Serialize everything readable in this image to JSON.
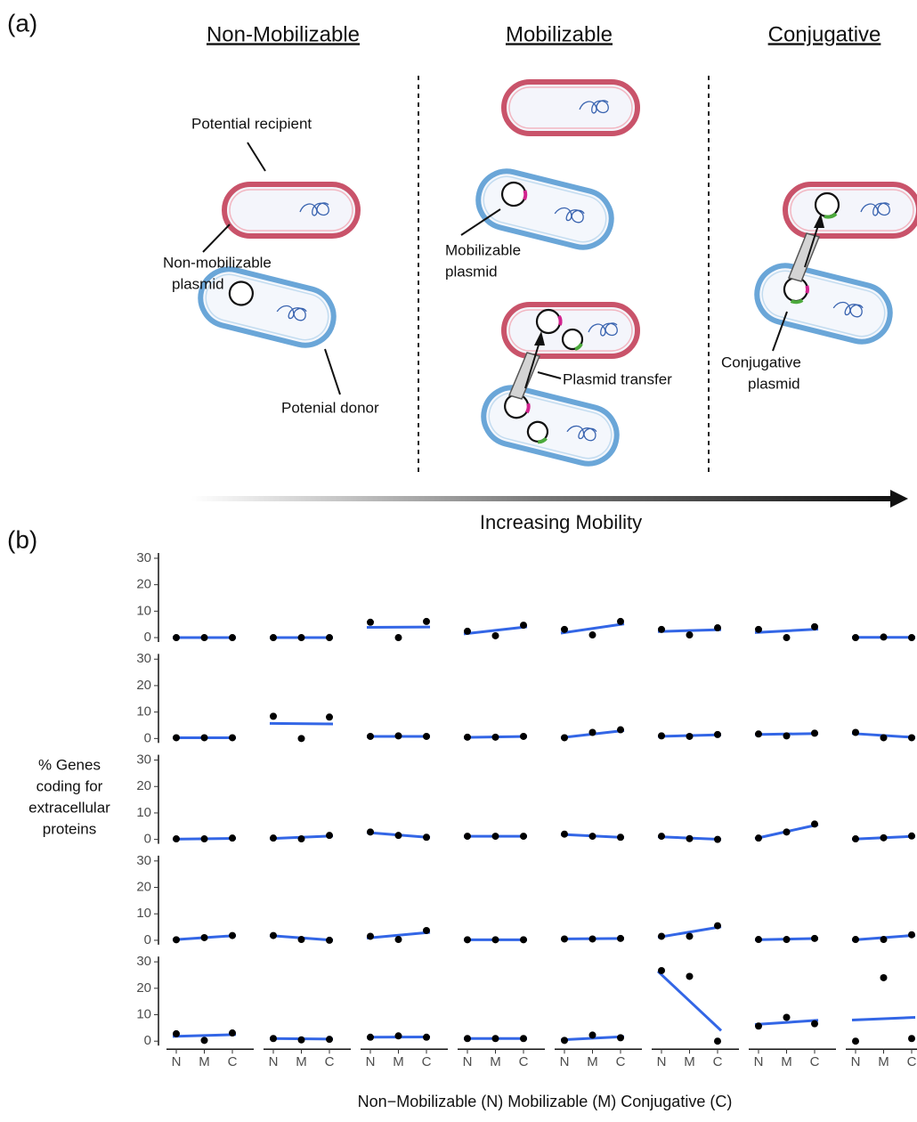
{
  "panel_a": {
    "label": "(a)",
    "headers": [
      "Non-Mobilizable",
      "Mobilizable",
      "Conjugative"
    ],
    "potential_recipient": "Potential recipient",
    "non_mobilizable_plasmid": [
      "Non-mobilizable",
      "plasmid"
    ],
    "potential_donor": "Potenial donor",
    "mobilizable_plasmid": [
      "Mobilizable",
      "plasmid"
    ],
    "plasmid_transfer": "Plasmid transfer",
    "conjugative_plasmid": [
      "Conjugative",
      "plasmid"
    ],
    "arrow_label": "Increasing Mobility"
  },
  "chart_data": {
    "type": "scatter",
    "panel_label": "(b)",
    "ylabel": [
      "% Genes",
      "coding for",
      "extracellular",
      "proteins"
    ],
    "xlabel": "Non−Mobilizable (N) Mobilizable (M) Conjugative (C)",
    "categories": [
      "N",
      "M",
      "C"
    ],
    "ylim": [
      -1,
      32
    ],
    "yticks": [
      0,
      10,
      20,
      30
    ],
    "rows": 5,
    "columns": 8,
    "point_color": "#000000",
    "fit_color": "#3366e6",
    "facets": [
      {
        "values": [
          0,
          0,
          0
        ],
        "fit": [
          0,
          0
        ]
      },
      {
        "values": [
          0,
          0,
          0
        ],
        "fit": [
          0,
          0
        ]
      },
      {
        "values": [
          5.8,
          0,
          6.1
        ],
        "fit": [
          3.9,
          4.0
        ]
      },
      {
        "values": [
          2.4,
          0.7,
          4.7
        ],
        "fit": [
          1.4,
          4.1
        ]
      },
      {
        "values": [
          3.1,
          1,
          6.1
        ],
        "fit": [
          1.7,
          5.2
        ]
      },
      {
        "values": [
          3.1,
          1,
          3.7
        ],
        "fit": [
          2.3,
          3.0
        ]
      },
      {
        "values": [
          3.1,
          0,
          4.1
        ],
        "fit": [
          1.9,
          3.2
        ]
      },
      {
        "values": [
          0,
          0.2,
          0
        ],
        "fit": [
          0.1,
          0.1
        ]
      },
      {
        "values": [
          0.3,
          0.3,
          0.3
        ],
        "fit": [
          0.3,
          0.3
        ]
      },
      {
        "values": [
          8.4,
          0,
          8.1
        ],
        "fit": [
          5.7,
          5.5
        ]
      },
      {
        "values": [
          0.8,
          1,
          0.8
        ],
        "fit": [
          0.8,
          0.8
        ]
      },
      {
        "values": [
          0.5,
          0.5,
          0.8
        ],
        "fit": [
          0.4,
          0.8
        ]
      },
      {
        "values": [
          0.3,
          2.3,
          3.3
        ],
        "fit": [
          0.3,
          3.0
        ]
      },
      {
        "values": [
          1,
          0.8,
          1.5
        ],
        "fit": [
          0.8,
          1.4
        ]
      },
      {
        "values": [
          1.7,
          1.0,
          2.0
        ],
        "fit": [
          1.5,
          1.9
        ]
      },
      {
        "values": [
          2.3,
          0.3,
          0.3
        ],
        "fit": [
          1.9,
          0.4
        ]
      },
      {
        "values": [
          0.2,
          0.2,
          0.5
        ],
        "fit": [
          0.1,
          0.4
        ]
      },
      {
        "values": [
          0.5,
          0.2,
          1.5
        ],
        "fit": [
          0.3,
          1.3
        ]
      },
      {
        "values": [
          2.8,
          1.5,
          0.8
        ],
        "fit": [
          2.6,
          0.7
        ]
      },
      {
        "values": [
          1.2,
          1.2,
          1.2
        ],
        "fit": [
          1.2,
          1.2
        ]
      },
      {
        "values": [
          2,
          1.2,
          0.8
        ],
        "fit": [
          1.9,
          0.7
        ]
      },
      {
        "values": [
          1.2,
          0.3,
          0
        ],
        "fit": [
          1.0,
          0
        ]
      },
      {
        "values": [
          0.5,
          2.8,
          5.8
        ],
        "fit": [
          0.3,
          5.6
        ]
      },
      {
        "values": [
          0.2,
          0.6,
          1.3
        ],
        "fit": [
          0.1,
          1.2
        ]
      },
      {
        "values": [
          0.2,
          1,
          1.8
        ],
        "fit": [
          0.2,
          1.8
        ]
      },
      {
        "values": [
          1.8,
          0.3,
          0
        ],
        "fit": [
          1.8,
          0
        ]
      },
      {
        "values": [
          1.5,
          0.3,
          3.7
        ],
        "fit": [
          0.8,
          3.0
        ]
      },
      {
        "values": [
          0.2,
          0.2,
          0.2
        ],
        "fit": [
          0.2,
          0.2
        ]
      },
      {
        "values": [
          0.5,
          0.5,
          0.7
        ],
        "fit": [
          0.5,
          0.7
        ]
      },
      {
        "values": [
          1.5,
          1.5,
          5.5
        ],
        "fit": [
          1.1,
          5.1
        ]
      },
      {
        "values": [
          0.3,
          0.3,
          0.7
        ],
        "fit": [
          0.2,
          0.7
        ]
      },
      {
        "values": [
          0.3,
          0.3,
          2.1
        ],
        "fit": [
          0.1,
          1.9
        ]
      },
      {
        "values": [
          2.8,
          0.3,
          3.1
        ],
        "fit": [
          1.8,
          2.5
        ]
      },
      {
        "values": [
          1,
          0.5,
          0.7
        ],
        "fit": [
          1.0,
          0.8
        ]
      },
      {
        "values": [
          1.5,
          2,
          1.5
        ],
        "fit": [
          1.5,
          1.6
        ]
      },
      {
        "values": [
          1,
          1,
          1
        ],
        "fit": [
          1,
          1
        ]
      },
      {
        "values": [
          0.3,
          2.3,
          1.3
        ],
        "fit": [
          0.5,
          1.7
        ]
      },
      {
        "values": [
          26.7,
          24.5,
          0
        ],
        "fit": [
          26.4,
          4.0
        ]
      },
      {
        "values": [
          5.7,
          9,
          6.6
        ],
        "fit": [
          6.3,
          7.9
        ]
      },
      {
        "values": [
          0,
          24,
          1
        ],
        "fit": [
          8.0,
          9.0
        ]
      }
    ]
  }
}
